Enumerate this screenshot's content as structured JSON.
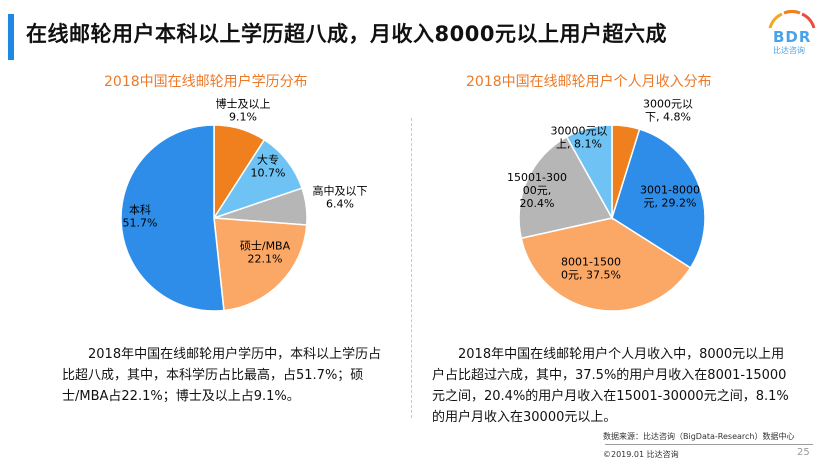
{
  "header": {
    "title": "在线邮轮用户本科以上学历超八成，月收入8000元以上用户超六成",
    "logo_text": "BDR",
    "logo_sub": "比达咨询"
  },
  "colors": {
    "accent": "#1e88e5",
    "title_orange": "#ec7a2b"
  },
  "chart_data": [
    {
      "type": "pie",
      "title": "2018中国在线邮轮用户学历分布",
      "slices": [
        {
          "label_lines": [
            "博士及以上",
            "9.1%"
          ],
          "value": 9.1,
          "color": "#f07f1d"
        },
        {
          "label_lines": [
            "大专",
            "10.7%"
          ],
          "value": 10.7,
          "color": "#6ec3f4"
        },
        {
          "label_lines": [
            "高中及以下",
            "6.4%"
          ],
          "value": 6.4,
          "color": "#b6b6b6"
        },
        {
          "label_lines": [
            "硕士/MBA",
            "22.1%"
          ],
          "value": 22.1,
          "color": "#fba765"
        },
        {
          "label_lines": [
            "本科",
            "51.7%"
          ],
          "value": 51.7,
          "color": "#2e8de8"
        }
      ]
    },
    {
      "type": "pie",
      "title": "2018中国在线邮轮用户个人月收入分布",
      "slices": [
        {
          "label_lines": [
            "3000元以",
            "下, 4.8%"
          ],
          "value": 4.8,
          "color": "#f07f1d"
        },
        {
          "label_lines": [
            "3001-8000",
            "元, 29.2%"
          ],
          "value": 29.2,
          "color": "#2e8de8"
        },
        {
          "label_lines": [
            "8001-1500",
            "0元, 37.5%"
          ],
          "value": 37.5,
          "color": "#fba765"
        },
        {
          "label_lines": [
            "15001-300",
            "00元,",
            "20.4%"
          ],
          "value": 20.4,
          "color": "#b6b6b6"
        },
        {
          "label_lines": [
            "30000元以",
            "上, 8.1%"
          ],
          "value": 8.1,
          "color": "#6ec3f4"
        }
      ]
    }
  ],
  "descriptions": {
    "left": "2018年中国在线邮轮用户学历中，本科以上学历占比超八成，其中，本科学历占比最高，占51.7%；硕士/MBA占22.1%；博士及以上占9.1%。",
    "right": "2018年中国在线邮轮用户个人月收入中，8000元以上用户占比超过六成，其中，37.5%的用户月收入在8001-15000元之间，20.4%的用户月收入在15001-30000元之间，8.1%的用户月收入在30000元以上。"
  },
  "footer": {
    "source": "数据来源：比达咨询（BigData-Research）数据中心",
    "copyright": "©2019.01  比达咨询",
    "page": "25"
  }
}
